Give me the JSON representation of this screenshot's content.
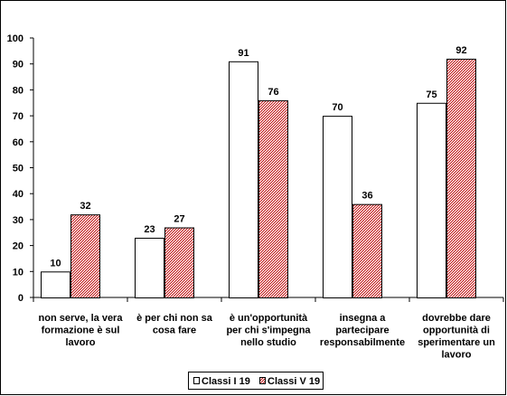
{
  "chart_data": {
    "type": "bar",
    "categories": [
      [
        "non serve, la vera",
        "formazione è sul",
        "lavoro"
      ],
      [
        "è per chi non sa",
        "cosa fare"
      ],
      [
        "è un'opportunità",
        "per chi s'impegna",
        "nello studio"
      ],
      [
        "insegna a",
        "partecipare",
        "responsabilmente"
      ],
      [
        "dovrebbe dare",
        "opportunità  di",
        "sperimentare un",
        "lavoro"
      ]
    ],
    "series": [
      {
        "name": "Classi I 19",
        "values": [
          10,
          23,
          91,
          70,
          75
        ],
        "fill": "#ffffff",
        "pattern": "none"
      },
      {
        "name": "Classi V 19",
        "values": [
          32,
          27,
          76,
          36,
          92
        ],
        "fill": "#cc3333",
        "pattern": "dotted-red"
      }
    ],
    "ylim": [
      0,
      100
    ],
    "yticks": [
      0,
      10,
      20,
      30,
      40,
      50,
      60,
      70,
      80,
      90,
      100
    ],
    "grid": false,
    "legend_position": "bottom",
    "data_labels": true
  }
}
